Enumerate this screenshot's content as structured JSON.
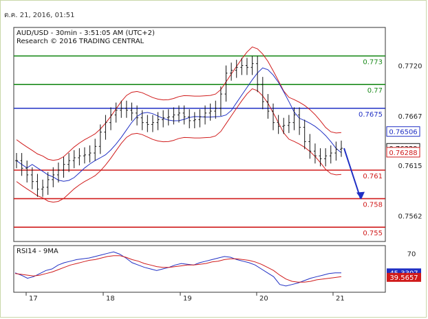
{
  "date_stamp": "ต.ค. 21, 2016, 01:51",
  "header": {
    "line1": "AUD/USD - 30min - 3:51:05 AM (UTC+2)",
    "line2": "Research © 2016 TRADING CENTRAL"
  },
  "chart_data": [
    {
      "type": "line",
      "title": "AUD/USD - 30min - 3:51:05 AM (UTC+2)",
      "subtitle": "Research © 2016 TRADING CENTRAL",
      "x_ticks": [
        "17",
        "18",
        "19",
        "20",
        "21"
      ],
      "y_ticks": [
        0.772,
        0.7667,
        0.7615,
        0.7562
      ],
      "y_tick_labels": [
        "0.7720",
        "0.7667",
        "0.7615",
        "0.7562"
      ],
      "ylim": [
        0.7535,
        0.776
      ],
      "levels": [
        {
          "label": "0.773",
          "value": 0.773,
          "color": "#1a8a1a"
        },
        {
          "label": "0.77",
          "value": 0.77,
          "color": "#1a8a1a"
        },
        {
          "label": "0.7675",
          "value": 0.7675,
          "color": "#1f2fc4"
        },
        {
          "label": "0.761",
          "value": 0.761,
          "color": "#d01a1a"
        },
        {
          "label": "0.758",
          "value": 0.758,
          "color": "#d01a1a"
        },
        {
          "label": "0.755",
          "value": 0.755,
          "color": "#d01a1a"
        }
      ],
      "price_tags": [
        {
          "label": "0.76506",
          "value": 0.76506,
          "color": "#1f2fc4"
        },
        {
          "label": "0.76329",
          "value": 0.76329,
          "color": "#111111"
        },
        {
          "label": "0.76288",
          "value": 0.76288,
          "color": "#d01a1a"
        }
      ],
      "price_series": [
        0.762,
        0.7612,
        0.7605,
        0.7598,
        0.759,
        0.7592,
        0.76,
        0.7605,
        0.761,
        0.7616,
        0.762,
        0.7623,
        0.7625,
        0.7626,
        0.7628,
        0.7635,
        0.765,
        0.766,
        0.7668,
        0.7673,
        0.7675,
        0.7673,
        0.767,
        0.7665,
        0.766,
        0.7658,
        0.766,
        0.7663,
        0.7665,
        0.7666,
        0.7668,
        0.767,
        0.7666,
        0.7662,
        0.7663,
        0.7666,
        0.767,
        0.7672,
        0.7675,
        0.769,
        0.7712,
        0.7715,
        0.7718,
        0.772,
        0.7718,
        0.7722,
        0.77,
        0.7682,
        0.7672,
        0.766,
        0.7656,
        0.7657,
        0.766,
        0.7668,
        0.7655,
        0.764,
        0.763,
        0.7625,
        0.7622,
        0.7625,
        0.7628,
        0.7632,
        0.7633
      ],
      "arrow_target": 0.758
    },
    {
      "type": "line",
      "title": "RSI14 - 9MA",
      "y_ticks": [
        70
      ],
      "y_tick_labels": [
        "70"
      ],
      "ylim": [
        20,
        80
      ],
      "series": [
        {
          "name": "RSI14",
          "color": "#1f2fc4",
          "values": [
            45,
            42,
            38,
            40,
            44,
            48,
            50,
            55,
            58,
            60,
            62,
            63,
            64,
            66,
            68,
            70,
            72,
            69,
            64,
            58,
            55,
            52,
            50,
            48,
            50,
            52,
            55,
            57,
            56,
            55,
            58,
            60,
            62,
            64,
            66,
            65,
            62,
            60,
            58,
            55,
            50,
            45,
            40,
            30,
            28,
            30,
            32,
            35,
            38,
            40,
            42,
            44,
            45,
            45
          ]
        },
        {
          "name": "9MA",
          "color": "#d01a1a",
          "values": [
            44,
            43,
            42,
            41,
            42,
            44,
            46,
            49,
            52,
            55,
            57,
            59,
            61,
            62,
            64,
            66,
            67,
            67,
            65,
            62,
            60,
            57,
            55,
            53,
            52,
            52,
            53,
            54,
            55,
            55,
            56,
            57,
            59,
            60,
            62,
            63,
            63,
            62,
            61,
            59,
            56,
            52,
            48,
            42,
            37,
            34,
            33,
            33,
            34,
            36,
            37,
            38,
            39,
            40
          ]
        }
      ],
      "value_tags": [
        {
          "label": "45.3307",
          "value": 45.3307,
          "color": "#1f2fc4"
        },
        {
          "label": "39.5657",
          "value": 39.5657,
          "color": "#d01a1a"
        }
      ]
    }
  ]
}
